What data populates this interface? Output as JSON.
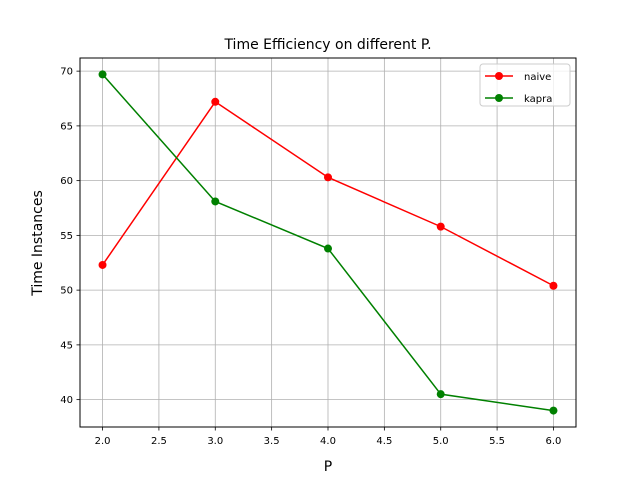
{
  "chart_data": {
    "type": "line",
    "title": "Time Efficiency on different P.",
    "xlabel": "P",
    "ylabel": "Time Instances",
    "x": [
      2.0,
      3.0,
      4.0,
      5.0,
      6.0
    ],
    "series": [
      {
        "name": "naive",
        "color": "#ff0000",
        "values": [
          52.3,
          67.2,
          60.3,
          55.8,
          50.4
        ]
      },
      {
        "name": "kapra",
        "color": "#008000",
        "values": [
          69.7,
          58.1,
          53.8,
          40.5,
          39.0
        ]
      }
    ],
    "xlim": [
      1.8,
      6.2
    ],
    "ylim": [
      37.5,
      71.2
    ],
    "xticks": [
      "2.0",
      "2.5",
      "3.0",
      "3.5",
      "4.0",
      "4.5",
      "5.0",
      "5.5",
      "6.0"
    ],
    "yticks": [
      "40",
      "45",
      "50",
      "55",
      "60",
      "65",
      "70"
    ],
    "grid": true,
    "legend_position": "top-right",
    "marker": "circle"
  }
}
